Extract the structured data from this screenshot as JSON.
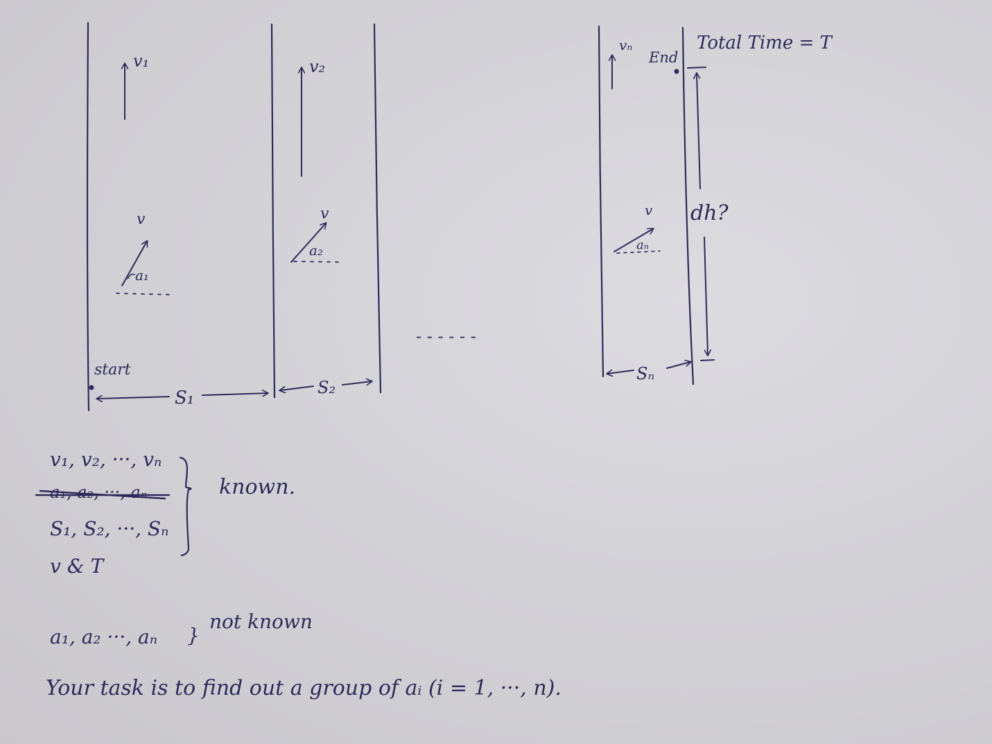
{
  "diagram": {
    "segments": [
      {
        "velocity_label": "v₁",
        "angle_label": "a₁",
        "speed_label": "v",
        "distance_label": "S₁"
      },
      {
        "velocity_label": "v₂",
        "angle_label": "a₂",
        "speed_label": "v",
        "distance_label": "S₂"
      },
      {
        "velocity_label": "vₙ",
        "angle_label": "aₙ",
        "speed_label": "v",
        "distance_label": "Sₙ"
      }
    ],
    "start_label": "start",
    "end_label": "End",
    "total_time_label": "Total Time = T",
    "height_label": "dh?",
    "ellipsis": "- - - - - -"
  },
  "notes": {
    "known_lines": [
      "v₁, v₂, ···, vₙ",
      "a₁, a₂, ···, aₙ",
      "S₁, S₂, ···, Sₙ",
      "v & T"
    ],
    "known_label": "known.",
    "unknown_line": "a₁, a₂ ···, aₙ",
    "unknown_label": "not known",
    "task": "Your task is to find out a group of  aᵢ (i = 1, ···, n)."
  }
}
